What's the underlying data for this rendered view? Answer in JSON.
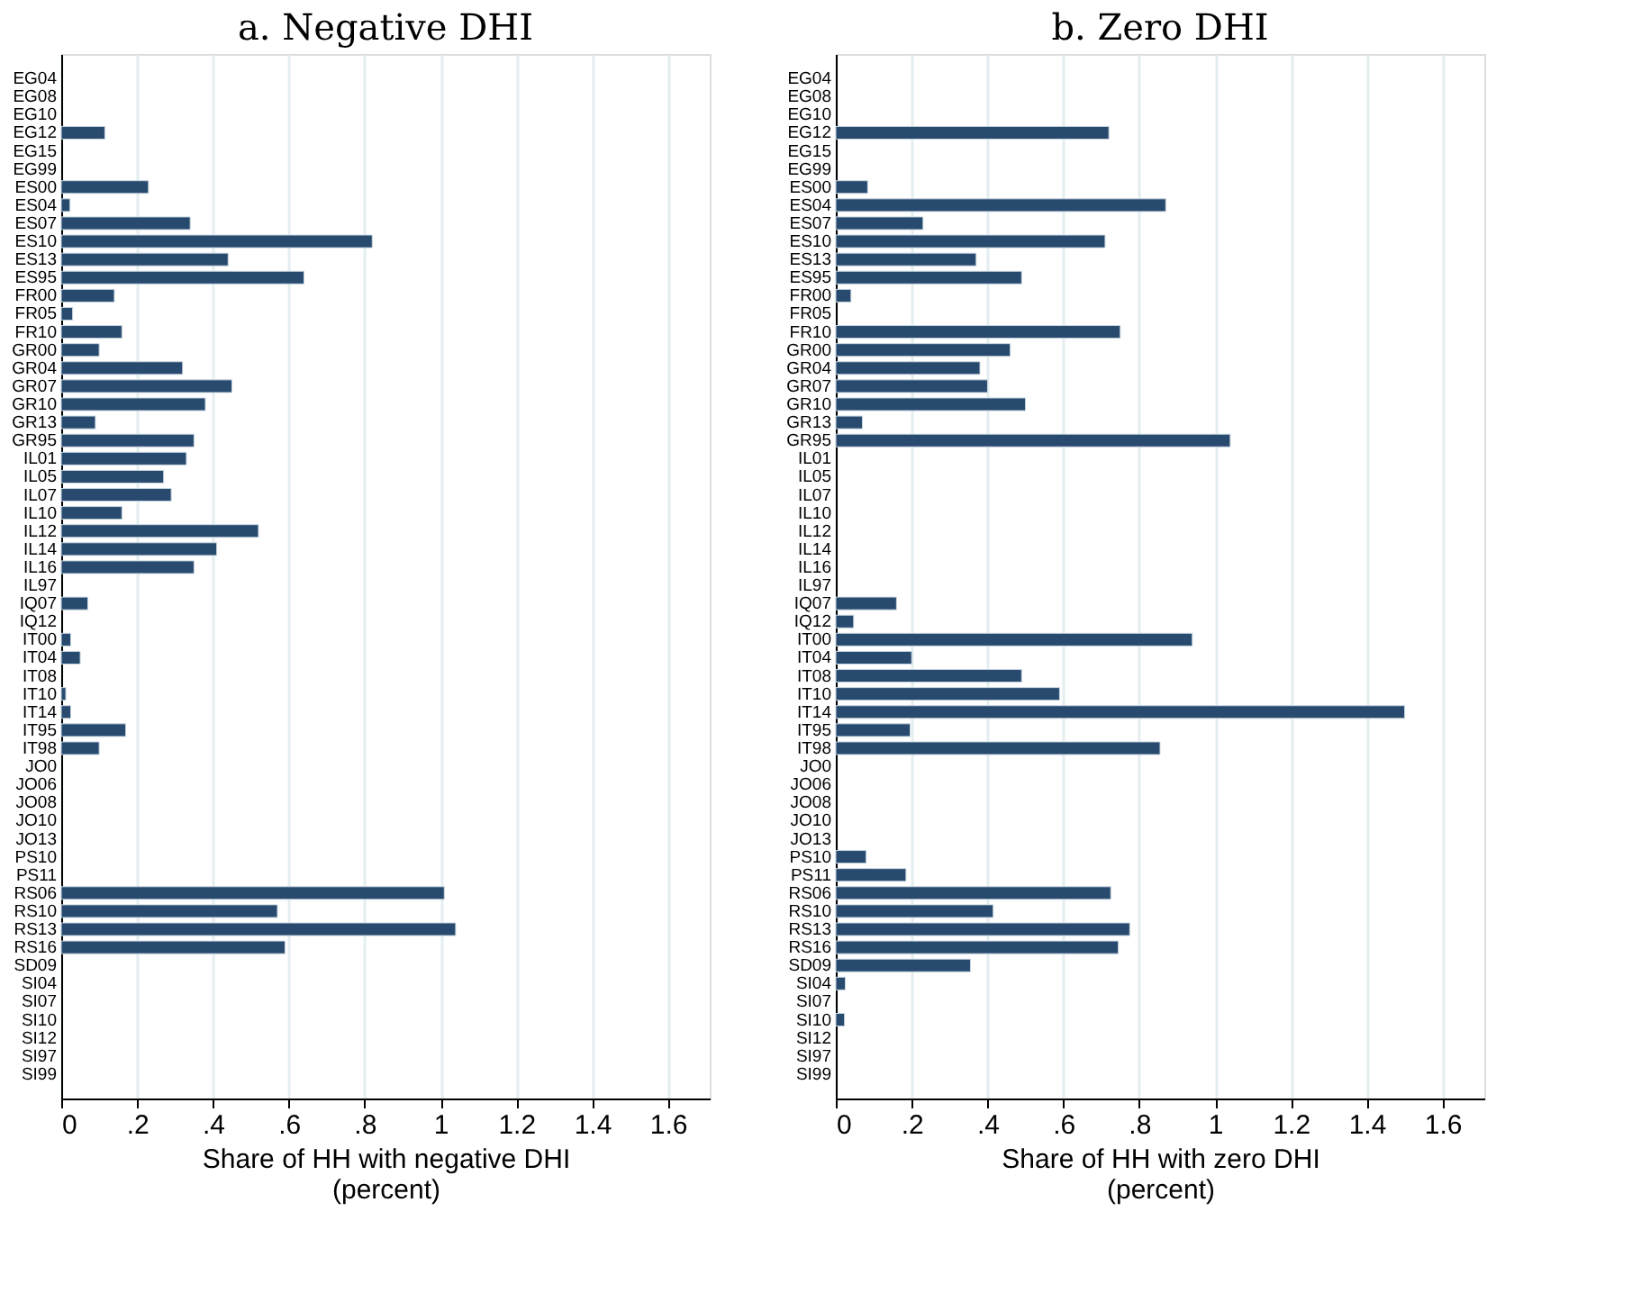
{
  "chart_data": [
    {
      "type": "bar",
      "orientation": "horizontal",
      "title": "a. Negative DHI",
      "xlabel": "Share of HH with negative DHI\n(percent)",
      "color": "#284a6e",
      "grid": "x",
      "categories": [
        "EG04",
        "EG08",
        "EG10",
        "EG12",
        "EG15",
        "EG99",
        "ES00",
        "ES04",
        "ES07",
        "ES10",
        "ES13",
        "ES95",
        "FR00",
        "FR05",
        "FR10",
        "GR00",
        "GR04",
        "GR07",
        "GR10",
        "GR13",
        "GR95",
        "IL01",
        "IL05",
        "IL07",
        "IL10",
        "IL12",
        "IL14",
        "IL16",
        "IL97",
        "IQ07",
        "IQ12",
        "IT00",
        "IT04",
        "IT08",
        "IT10",
        "IT14",
        "IT95",
        "IT98",
        "JO0",
        "JO06",
        "JO08",
        "JO10",
        "JO13",
        "PS10",
        "PS11",
        "RS06",
        "RS10",
        "RS13",
        "RS16",
        "SD09",
        "SI04",
        "SI07",
        "SI10",
        "SI12",
        "SI97",
        "SI99"
      ],
      "values": [
        null,
        null,
        null,
        0.115,
        null,
        null,
        0.23,
        0.023,
        0.34,
        0.82,
        0.44,
        0.64,
        0.14,
        0.03,
        0.16,
        0.1,
        0.32,
        0.45,
        0.38,
        0.09,
        0.35,
        0.33,
        0.27,
        0.29,
        0.16,
        0.52,
        0.41,
        0.35,
        null,
        0.07,
        null,
        0.025,
        0.05,
        null,
        0.012,
        0.025,
        0.17,
        0.1,
        null,
        null,
        null,
        null,
        null,
        null,
        null,
        1.01,
        0.57,
        1.04,
        0.59,
        null,
        null,
        null,
        null,
        null,
        null,
        null
      ],
      "xlim": [
        0,
        1.71
      ],
      "xticks": [
        0,
        {
          "value": 0.2,
          "label": ".2"
        },
        {
          "value": 0.4,
          "label": ".4"
        },
        {
          "value": 0.6,
          "label": ".6"
        },
        {
          "value": 0.8,
          "label": ".8"
        },
        1,
        1.2,
        1.4,
        1.6
      ]
    },
    {
      "type": "bar",
      "orientation": "horizontal",
      "title": "b. Zero DHI",
      "xlabel": "Share of HH with zero DHI\n(percent)",
      "color": "#284a6e",
      "grid": "x",
      "categories": [
        "EG04",
        "EG08",
        "EG10",
        "EG12",
        "EG15",
        "EG99",
        "ES00",
        "ES04",
        "ES07",
        "ES10",
        "ES13",
        "ES95",
        "FR00",
        "FR05",
        "FR10",
        "GR00",
        "GR04",
        "GR07",
        "GR10",
        "GR13",
        "GR95",
        "IL01",
        "IL05",
        "IL07",
        "IL10",
        "IL12",
        "IL14",
        "IL16",
        "IL97",
        "IQ07",
        "IQ12",
        "IT00",
        "IT04",
        "IT08",
        "IT10",
        "IT14",
        "IT95",
        "IT98",
        "JO0",
        "JO06",
        "JO08",
        "JO10",
        "JO13",
        "PS10",
        "PS11",
        "RS06",
        "RS10",
        "RS13",
        "RS16",
        "SD09",
        "SI04",
        "SI07",
        "SI10",
        "SI12",
        "SI97",
        "SI99"
      ],
      "values": [
        null,
        null,
        null,
        0.72,
        null,
        null,
        0.084,
        0.87,
        0.23,
        0.71,
        0.37,
        0.49,
        0.04,
        null,
        0.75,
        0.46,
        0.38,
        0.4,
        0.5,
        0.07,
        1.04,
        null,
        null,
        null,
        null,
        null,
        null,
        null,
        null,
        0.16,
        0.047,
        0.94,
        0.2,
        0.49,
        0.59,
        1.5,
        0.196,
        0.855,
        null,
        null,
        null,
        null,
        null,
        0.08,
        0.185,
        0.725,
        0.415,
        0.775,
        0.745,
        0.355,
        0.025,
        null,
        0.023,
        null,
        null,
        null
      ],
      "xlim": [
        0,
        1.71
      ],
      "xticks": [
        0,
        {
          "value": 0.2,
          "label": ".2"
        },
        {
          "value": 0.4,
          "label": ".4"
        },
        {
          "value": 0.6,
          "label": ".6"
        },
        {
          "value": 0.8,
          "label": ".8"
        },
        1,
        1.2,
        1.4,
        1.6
      ]
    }
  ]
}
